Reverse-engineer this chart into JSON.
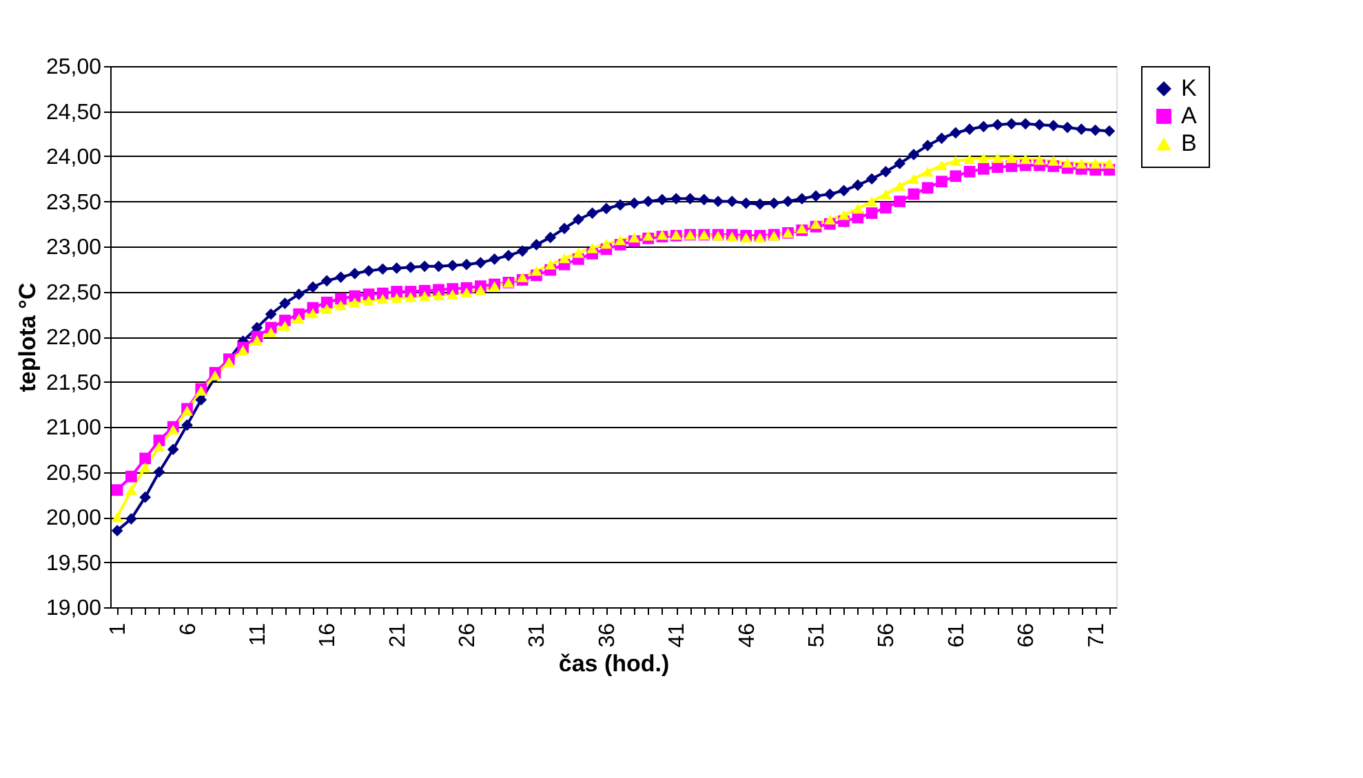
{
  "chart_data": {
    "type": "line",
    "xlabel": "čas (hod.)",
    "ylabel": "teplota °C",
    "categories": [
      "1",
      null,
      null,
      null,
      null,
      "6",
      null,
      null,
      null,
      null,
      "11",
      null,
      null,
      null,
      null,
      "16",
      null,
      null,
      null,
      null,
      "21",
      null,
      null,
      null,
      null,
      "26",
      null,
      null,
      null,
      null,
      "31",
      null,
      null,
      null,
      null,
      "36",
      null,
      null,
      null,
      null,
      "41",
      null,
      null,
      null,
      null,
      "46",
      null,
      null,
      null,
      null,
      "51",
      null,
      null,
      null,
      null,
      "56",
      null,
      null,
      null,
      null,
      "61",
      null,
      null,
      null,
      null,
      "66",
      null,
      null,
      null,
      null,
      "71",
      null
    ],
    "ylim": [
      19,
      25
    ],
    "yticks": [
      {
        "value": 19,
        "label": "19,00"
      },
      {
        "value": 19.5,
        "label": "19,50"
      },
      {
        "value": 20,
        "label": "20,00"
      },
      {
        "value": 20.5,
        "label": "20,50"
      },
      {
        "value": 21,
        "label": "21,00"
      },
      {
        "value": 21.5,
        "label": "21,50"
      },
      {
        "value": 22,
        "label": "22,00"
      },
      {
        "value": 22.5,
        "label": "22,50"
      },
      {
        "value": 23,
        "label": "23,00"
      },
      {
        "value": 23.5,
        "label": "23,50"
      },
      {
        "value": 24,
        "label": "24,00"
      },
      {
        "value": 24.5,
        "label": "24,50"
      },
      {
        "value": 25,
        "label": "25,00"
      }
    ],
    "grid": "y",
    "legend": "right",
    "line_style": "solid",
    "series": [
      {
        "name": "K",
        "color": "#000080",
        "marker": "diamond",
        "values": [
          19.85,
          19.98,
          20.22,
          20.5,
          20.75,
          21.02,
          21.3,
          21.55,
          21.75,
          21.95,
          22.1,
          22.25,
          22.37,
          22.47,
          22.55,
          22.62,
          22.66,
          22.7,
          22.73,
          22.75,
          22.76,
          22.77,
          22.78,
          22.78,
          22.79,
          22.8,
          22.82,
          22.86,
          22.9,
          22.95,
          23.02,
          23.1,
          23.2,
          23.3,
          23.37,
          23.42,
          23.46,
          23.48,
          23.5,
          23.52,
          23.53,
          23.53,
          23.52,
          23.5,
          23.5,
          23.48,
          23.47,
          23.48,
          23.5,
          23.53,
          23.56,
          23.58,
          23.62,
          23.68,
          23.75,
          23.83,
          23.92,
          24.02,
          24.12,
          24.2,
          24.26,
          24.3,
          24.33,
          24.35,
          24.36,
          24.36,
          24.35,
          24.34,
          24.32,
          24.3,
          24.29,
          24.28
        ]
      },
      {
        "name": "A",
        "color": "#ff00ff",
        "marker": "square",
        "values": [
          20.3,
          20.45,
          20.65,
          20.85,
          21.0,
          21.2,
          21.42,
          21.6,
          21.75,
          21.88,
          22.0,
          22.1,
          22.18,
          22.25,
          22.32,
          22.38,
          22.42,
          22.45,
          22.47,
          22.48,
          22.5,
          22.5,
          22.51,
          22.52,
          22.53,
          22.54,
          22.56,
          22.58,
          22.6,
          22.63,
          22.68,
          22.74,
          22.8,
          22.86,
          22.92,
          22.97,
          23.02,
          23.06,
          23.09,
          23.11,
          23.12,
          23.13,
          23.13,
          23.13,
          23.13,
          23.12,
          23.12,
          23.13,
          23.15,
          23.18,
          23.22,
          23.25,
          23.28,
          23.32,
          23.37,
          23.43,
          23.5,
          23.58,
          23.65,
          23.72,
          23.78,
          23.83,
          23.86,
          23.88,
          23.89,
          23.9,
          23.9,
          23.89,
          23.87,
          23.86,
          23.85,
          23.85
        ]
      },
      {
        "name": "B",
        "color": "#ffff00",
        "marker": "triangle",
        "values": [
          20.0,
          20.3,
          20.55,
          20.78,
          20.97,
          21.18,
          21.4,
          21.57,
          21.72,
          21.85,
          21.96,
          22.05,
          22.12,
          22.2,
          22.26,
          22.31,
          22.35,
          22.38,
          22.4,
          22.42,
          22.43,
          22.44,
          22.45,
          22.46,
          22.47,
          22.49,
          22.52,
          22.56,
          22.6,
          22.66,
          22.73,
          22.8,
          22.87,
          22.93,
          22.98,
          23.03,
          23.07,
          23.1,
          23.12,
          23.13,
          23.13,
          23.13,
          23.13,
          23.12,
          23.11,
          23.1,
          23.1,
          23.12,
          23.15,
          23.2,
          23.25,
          23.3,
          23.35,
          23.42,
          23.5,
          23.58,
          23.67,
          23.75,
          23.83,
          23.9,
          23.95,
          23.97,
          23.98,
          23.98,
          23.98,
          23.97,
          23.96,
          23.95,
          23.93,
          23.92,
          23.92,
          23.92
        ]
      }
    ]
  }
}
